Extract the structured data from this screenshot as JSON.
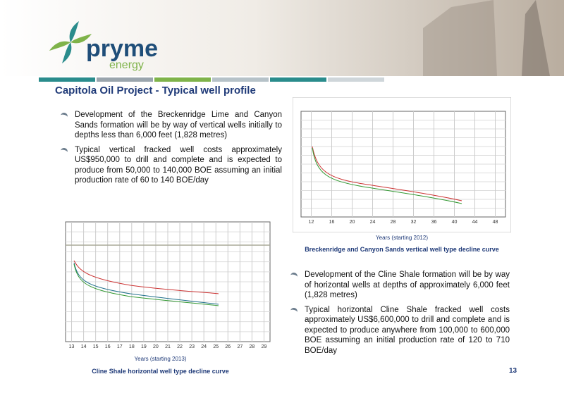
{
  "header": {
    "logo_name": "pryme",
    "logo_sub": "energy"
  },
  "title": "Capitola Oil Project - Typical well profile",
  "bullets_top": [
    "Development of the Breckenridge Lime and Canyon Sands formation will be by way of vertical wells initially to depths less than 6,000 feet (1,828 metres)",
    "Typical vertical fracked well costs approximately US$950,000 to drill and complete and is expected to produce from 50,000 to 140,000 BOE assuming an initial production rate of 60 to 140 BOE/day"
  ],
  "chart_top": {
    "x_ticks": [
      "12",
      "16",
      "20",
      "24",
      "28",
      "32",
      "36",
      "40",
      "44",
      "48"
    ],
    "x_label": "Years (starting 2012)",
    "caption": "Breckenridge and Canyon Sands vertical well type decline curve"
  },
  "chart_bottom": {
    "x_ticks": [
      "13",
      "14",
      "15",
      "16",
      "17",
      "18",
      "19",
      "20",
      "21",
      "22",
      "23",
      "24",
      "25",
      "26",
      "27",
      "28",
      "29"
    ],
    "x_label": "Years (starting 2013)",
    "caption": "Cline Shale horizontal well type decline curve"
  },
  "bullets_bottom": [
    "Development of the Cline Shale formation will be by way of horizontal wells at depths of approximately 6,000 feet (1,828 metres)",
    "Typical horizontal Cline Shale fracked well costs approximately US$6,600,000 to drill and complete and is expected to produce anywhere from 100,000 to 600,000 BOE assuming an initial production rate of 120 to 710 BOE/day"
  ],
  "page_number": "13"
}
